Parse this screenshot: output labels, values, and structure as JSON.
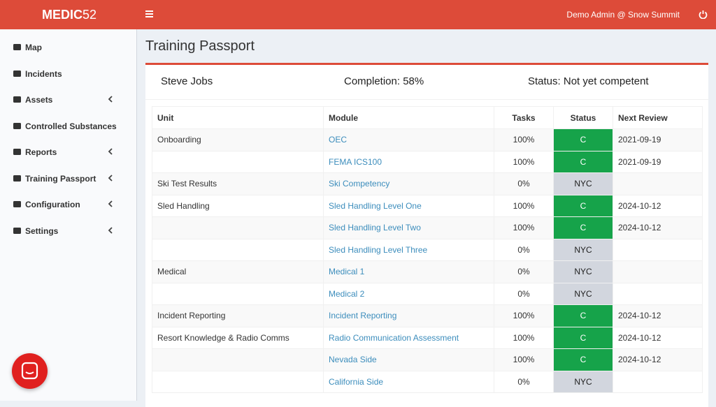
{
  "header": {
    "brand_bold": "MEDIC",
    "brand_light": "52",
    "user": "Demo Admin @ Snow Summit"
  },
  "sidebar": {
    "items": [
      {
        "label": "Map",
        "expandable": false
      },
      {
        "label": "Incidents",
        "expandable": false
      },
      {
        "label": "Assets",
        "expandable": true
      },
      {
        "label": "Controlled Substances",
        "expandable": false
      },
      {
        "label": "Reports",
        "expandable": true
      },
      {
        "label": "Training Passport",
        "expandable": true
      },
      {
        "label": "Configuration",
        "expandable": true
      },
      {
        "label": "Settings",
        "expandable": true
      }
    ]
  },
  "page_title": "Training Passport",
  "summary": {
    "name": "Steve Jobs",
    "completion": "Completion: 58%",
    "status": "Status: Not yet competent"
  },
  "table": {
    "columns": [
      "Unit",
      "Module",
      "Tasks",
      "Status",
      "Next Review"
    ],
    "status_styles": {
      "C": {
        "background": "#16a34a",
        "color": "#ffffff"
      },
      "NYC": {
        "background": "#d2d6de",
        "color": "#222222"
      }
    },
    "rows": [
      [
        "Onboarding",
        "OEC",
        "100%",
        "C",
        "2021-09-19"
      ],
      [
        null,
        "FEMA ICS100",
        "100%",
        "C",
        "2021-09-19"
      ],
      [
        "Ski Test Results",
        "Ski Competency",
        "0%",
        "NYC",
        null
      ],
      [
        "Sled Handling",
        "Sled Handling Level One",
        "100%",
        "C",
        "2024-10-12"
      ],
      [
        null,
        "Sled Handling Level Two",
        "100%",
        "C",
        "2024-10-12"
      ],
      [
        null,
        "Sled Handling Level Three",
        "0%",
        "NYC",
        null
      ],
      [
        "Medical",
        "Medical 1",
        "0%",
        "NYC",
        null
      ],
      [
        null,
        "Medical 2",
        "0%",
        "NYC",
        null
      ],
      [
        "Incident Reporting",
        "Incident Reporting",
        "100%",
        "C",
        "2024-10-12"
      ],
      [
        "Resort Knowledge & Radio Comms",
        "Radio Communication Assessment",
        "100%",
        "C",
        "2024-10-12"
      ],
      [
        null,
        "Nevada Side",
        "100%",
        "C",
        "2024-10-12"
      ],
      [
        null,
        "California Side",
        "0%",
        "NYC",
        null
      ]
    ]
  }
}
